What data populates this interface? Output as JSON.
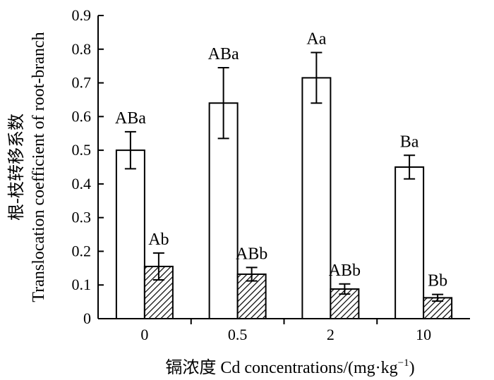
{
  "chart_data": {
    "type": "bar",
    "categories": [
      "0",
      "0.5",
      "2",
      "10"
    ],
    "series": [
      {
        "values": [
          0.5,
          0.64,
          0.715,
          0.45
        ],
        "errors": [
          0.055,
          0.105,
          0.075,
          0.035
        ],
        "labels": [
          "ABa",
          "ABa",
          "Aa",
          "Ba"
        ],
        "fill": "#ffffff"
      },
      {
        "values": [
          0.155,
          0.132,
          0.088,
          0.062
        ],
        "errors": [
          0.04,
          0.02,
          0.015,
          0.01
        ],
        "labels": [
          "Ab",
          "ABb",
          "ABb",
          "Bb"
        ],
        "fill": "hatch"
      }
    ],
    "ylim": [
      0,
      0.9
    ],
    "yticks": [
      "0",
      "0.1",
      "0.2",
      "0.3",
      "0.4",
      "0.5",
      "0.6",
      "0.7",
      "0.8",
      "0.9"
    ],
    "ylabel_line1": "根-枝转移系数",
    "ylabel_line2": "Translocation coefficient of root-branch",
    "xlabel_prefix": "镉浓度 Cd concentrations/(mg·kg",
    "xlabel_sup": "−1",
    "xlabel_suffix": ")",
    "grid": false,
    "colors": {
      "bar_stroke": "#000000",
      "bar_fill": "#ffffff",
      "hatch": "#000000"
    }
  }
}
